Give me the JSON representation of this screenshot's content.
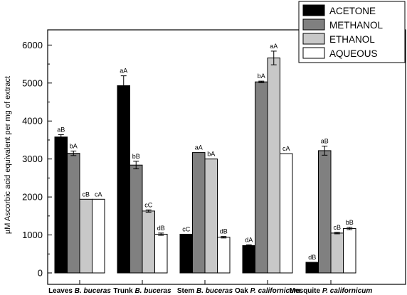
{
  "chart_data": {
    "type": "bar",
    "ylabel": "µM Ascorbic acid equivalent per mg of extract",
    "ylim": [
      -300,
      6400
    ],
    "yticks": [
      0,
      1000,
      2000,
      3000,
      4000,
      5000,
      6000
    ],
    "categories": [
      {
        "prefix": "Leaves ",
        "species": "B. buceras"
      },
      {
        "prefix": "Trunk ",
        "species": "B. buceras"
      },
      {
        "prefix": "Stem ",
        "species": "B. buceras"
      },
      {
        "prefix": "Oak ",
        "species": "P. californicum"
      },
      {
        "prefix": "Mesquite ",
        "species": "P. californicum"
      }
    ],
    "series": [
      {
        "name": "ACETONE",
        "color": "#000000",
        "values": [
          3580,
          4930,
          1020,
          720,
          280
        ],
        "errors": [
          60,
          260,
          0,
          20,
          0
        ],
        "labels": [
          "aB",
          "aA",
          "cC",
          "dA",
          "dB"
        ]
      },
      {
        "name": "METHANOL",
        "color": "#808080",
        "values": [
          3150,
          2840,
          3170,
          5030,
          3220
        ],
        "errors": [
          60,
          100,
          0,
          20,
          120
        ],
        "labels": [
          "bA",
          "bB",
          "aA",
          "bA",
          "aB"
        ]
      },
      {
        "name": "ETHANOL",
        "color": "#c8c8c8",
        "values": [
          1940,
          1630,
          3000,
          5660,
          1050
        ],
        "errors": [
          0,
          30,
          0,
          180,
          20
        ],
        "labels": [
          "cB",
          "cC",
          "bA",
          "aA",
          "cB"
        ]
      },
      {
        "name": "AQUEOUS",
        "color": "#ffffff",
        "values": [
          1940,
          1020,
          940,
          3140,
          1170
        ],
        "errors": [
          0,
          30,
          20,
          0,
          30
        ],
        "labels": [
          "cA",
          "dB",
          "dB",
          "cA",
          "bB"
        ]
      }
    ],
    "legend_position": "top-right",
    "grid": false
  }
}
